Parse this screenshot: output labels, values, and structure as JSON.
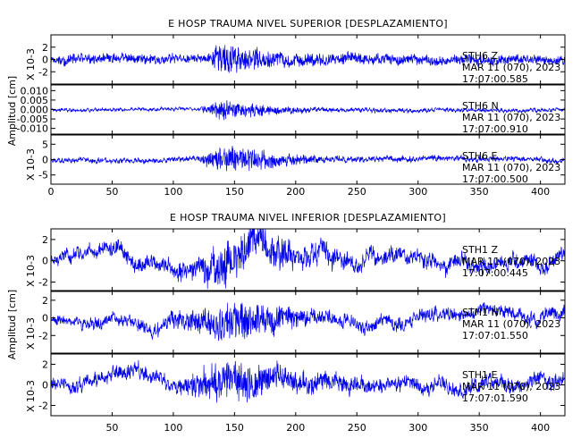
{
  "chart_data": [
    {
      "type": "line",
      "title": "E HOSP TRAUMA NIVEL SUPERIOR [DESPLAZAMIENTO]",
      "ylabel": "Amplitud [cm]",
      "xlim": [
        0,
        420
      ],
      "x_ticks": [
        0,
        50,
        100,
        150,
        200,
        250,
        300,
        350,
        400
      ],
      "grid": false,
      "series": [
        {
          "name": "STH6 Z",
          "date": "MAR 11 (070), 2023",
          "time": "17:07:00.585",
          "scale_label": "X 10-3",
          "ylim": [
            -4,
            4
          ],
          "y_ticks": [
            -2,
            0,
            2
          ],
          "noise": 0.25,
          "peak_amp": 3.2,
          "event_x": 140,
          "seed": 11,
          "drift": 0.2,
          "amp_envelope": [
            [
              0,
              0.3
            ],
            [
              20,
              0.35
            ],
            [
              80,
              0.3
            ],
            [
              128,
              0.3
            ],
            [
              135,
              1.0
            ],
            [
              142,
              1.0
            ],
            [
              160,
              0.75
            ],
            [
              200,
              0.45
            ],
            [
              260,
              0.35
            ],
            [
              420,
              0.3
            ]
          ]
        },
        {
          "name": "STH6 N",
          "date": "MAR 11 (070), 2023",
          "time": "17:07:00.910",
          "scale_label": "",
          "ylim": [
            -0.013,
            0.013
          ],
          "y_ticks": [
            -0.01,
            -0.005,
            0.0,
            0.005,
            0.01
          ],
          "tick_format": "%.3f",
          "noise": 0.0006,
          "peak_amp": 0.0075,
          "event_x": 142,
          "seed": 23,
          "drift": 0.0003,
          "amp_envelope": [
            [
              0,
              0.12
            ],
            [
              120,
              0.12
            ],
            [
              130,
              0.5
            ],
            [
              140,
              1.0
            ],
            [
              150,
              0.85
            ],
            [
              180,
              0.4
            ],
            [
              220,
              0.2
            ],
            [
              420,
              0.12
            ]
          ]
        },
        {
          "name": "STH6 E",
          "date": "MAR 11 (070), 2023",
          "time": "17:07:00.500",
          "scale_label": "X 10-3",
          "ylim": [
            -8,
            8
          ],
          "y_ticks": [
            -5,
            0,
            5
          ],
          "noise": 0.4,
          "peak_amp": 6.2,
          "event_x": 142,
          "seed": 37,
          "drift": 0.3,
          "amp_envelope": [
            [
              0,
              0.15
            ],
            [
              120,
              0.15
            ],
            [
              128,
              0.6
            ],
            [
              140,
              1.0
            ],
            [
              155,
              0.85
            ],
            [
              190,
              0.45
            ],
            [
              230,
              0.2
            ],
            [
              420,
              0.15
            ]
          ]
        }
      ]
    },
    {
      "type": "line",
      "title": "E HOSP TRAUMA NIVEL INFERIOR [DESPLAZAMIENTO]",
      "ylabel": "Amplitud [cm]",
      "xlim": [
        0,
        420
      ],
      "x_ticks": [
        50,
        100,
        150,
        200,
        250,
        300,
        350,
        400
      ],
      "grid": false,
      "series": [
        {
          "name": "STH1 Z",
          "date": "MAR 11 (070), 2023",
          "time": "17:07:00.445",
          "scale_label": "X 10-3",
          "ylim": [
            -2.8,
            3
          ],
          "y_ticks": [
            -2,
            0,
            2
          ],
          "noise": 0.3,
          "peak_amp": 2.9,
          "event_x": 145,
          "seed": 51,
          "drift": 0.9,
          "amp_envelope": [
            [
              0,
              0.2
            ],
            [
              60,
              0.3
            ],
            [
              120,
              0.35
            ],
            [
              128,
              0.8
            ],
            [
              145,
              1.0
            ],
            [
              170,
              0.8
            ],
            [
              200,
              0.5
            ],
            [
              260,
              0.3
            ],
            [
              420,
              0.3
            ]
          ]
        },
        {
          "name": "STH1 N",
          "date": "MAR 11 (070), 2023",
          "time": "17:07:01.550",
          "scale_label": "X 10-3",
          "ylim": [
            -4,
            3
          ],
          "y_ticks": [
            -2,
            0,
            2
          ],
          "noise": 0.3,
          "peak_amp": 3.0,
          "event_x": 148,
          "seed": 67,
          "drift": 0.7,
          "amp_envelope": [
            [
              0,
              0.2
            ],
            [
              80,
              0.3
            ],
            [
              128,
              0.6
            ],
            [
              148,
              1.0
            ],
            [
              175,
              0.75
            ],
            [
              210,
              0.4
            ],
            [
              260,
              0.3
            ],
            [
              420,
              0.3
            ]
          ]
        },
        {
          "name": "STH1 E",
          "date": "MAR 11 (070), 2023",
          "time": "17:07:01.590",
          "scale_label": "X 10-3",
          "ylim": [
            -3,
            3
          ],
          "y_ticks": [
            -2,
            0,
            2
          ],
          "noise": 0.3,
          "peak_amp": 3.0,
          "event_x": 140,
          "seed": 83,
          "drift": 0.6,
          "amp_envelope": [
            [
              0,
              0.25
            ],
            [
              100,
              0.3
            ],
            [
              125,
              0.6
            ],
            [
              140,
              1.0
            ],
            [
              165,
              0.7
            ],
            [
              210,
              0.4
            ],
            [
              260,
              0.3
            ],
            [
              420,
              0.3
            ]
          ]
        }
      ]
    }
  ]
}
